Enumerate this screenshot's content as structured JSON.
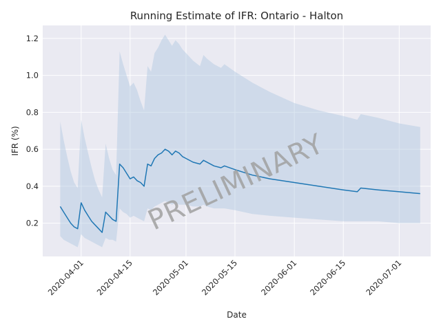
{
  "chart_data": {
    "type": "line",
    "title": "Running Estimate of IFR: Ontario - Halton",
    "xlabel": "Date",
    "ylabel": "IFR (%)",
    "watermark": "PRELIMINARY",
    "xlim": [
      "2020-03-21",
      "2020-07-10"
    ],
    "ylim": [
      0.02,
      1.27
    ],
    "grid": true,
    "x_ticks": [
      "2020-04-01",
      "2020-04-15",
      "2020-05-01",
      "2020-05-15",
      "2020-06-01",
      "2020-06-15",
      "2020-07-01"
    ],
    "y_ticks": [
      0.2,
      0.4,
      0.6,
      0.8,
      1.0,
      1.2
    ],
    "y_tick_labels": [
      "0.2",
      "0.4",
      "0.6",
      "0.8",
      "1.0",
      "1.2"
    ],
    "series": [
      {
        "color": "#1f77b4",
        "band_color": "#b0c8e0",
        "x": [
          "2020-03-26",
          "2020-03-27",
          "2020-03-28",
          "2020-03-29",
          "2020-03-30",
          "2020-03-31",
          "2020-04-01",
          "2020-04-02",
          "2020-04-03",
          "2020-04-04",
          "2020-04-05",
          "2020-04-06",
          "2020-04-07",
          "2020-04-08",
          "2020-04-09",
          "2020-04-10",
          "2020-04-11",
          "2020-04-12",
          "2020-04-13",
          "2020-04-14",
          "2020-04-15",
          "2020-04-16",
          "2020-04-17",
          "2020-04-18",
          "2020-04-19",
          "2020-04-20",
          "2020-04-21",
          "2020-04-22",
          "2020-04-23",
          "2020-04-24",
          "2020-04-25",
          "2020-04-26",
          "2020-04-27",
          "2020-04-28",
          "2020-04-29",
          "2020-04-30",
          "2020-05-01",
          "2020-05-03",
          "2020-05-05",
          "2020-05-06",
          "2020-05-07",
          "2020-05-09",
          "2020-05-11",
          "2020-05-12",
          "2020-05-15",
          "2020-05-20",
          "2020-05-25",
          "2020-06-01",
          "2020-06-08",
          "2020-06-15",
          "2020-06-19",
          "2020-06-20",
          "2020-06-25",
          "2020-07-01",
          "2020-07-07"
        ],
        "y": [
          0.29,
          0.26,
          0.23,
          0.2,
          0.18,
          0.17,
          0.31,
          0.27,
          0.24,
          0.21,
          0.19,
          0.17,
          0.15,
          0.26,
          0.24,
          0.22,
          0.21,
          0.52,
          0.5,
          0.47,
          0.44,
          0.45,
          0.43,
          0.42,
          0.4,
          0.52,
          0.51,
          0.55,
          0.57,
          0.58,
          0.6,
          0.59,
          0.57,
          0.59,
          0.58,
          0.56,
          0.55,
          0.53,
          0.52,
          0.54,
          0.53,
          0.51,
          0.5,
          0.51,
          0.49,
          0.46,
          0.44,
          0.42,
          0.4,
          0.38,
          0.37,
          0.39,
          0.38,
          0.37,
          0.36
        ],
        "y_lower": [
          0.13,
          0.11,
          0.1,
          0.09,
          0.08,
          0.07,
          0.14,
          0.12,
          0.11,
          0.1,
          0.09,
          0.08,
          0.07,
          0.12,
          0.11,
          0.11,
          0.1,
          0.28,
          0.26,
          0.25,
          0.23,
          0.24,
          0.23,
          0.22,
          0.21,
          0.28,
          0.27,
          0.29,
          0.3,
          0.31,
          0.32,
          0.31,
          0.3,
          0.31,
          0.3,
          0.3,
          0.3,
          0.29,
          0.29,
          0.3,
          0.29,
          0.28,
          0.28,
          0.28,
          0.27,
          0.25,
          0.24,
          0.23,
          0.22,
          0.21,
          0.21,
          0.21,
          0.21,
          0.2,
          0.2
        ],
        "y_upper": [
          0.75,
          0.65,
          0.56,
          0.48,
          0.42,
          0.39,
          0.76,
          0.66,
          0.58,
          0.5,
          0.43,
          0.38,
          0.34,
          0.63,
          0.55,
          0.49,
          0.46,
          1.13,
          1.06,
          1.0,
          0.94,
          0.96,
          0.92,
          0.86,
          0.81,
          1.05,
          1.02,
          1.12,
          1.15,
          1.19,
          1.22,
          1.19,
          1.16,
          1.19,
          1.17,
          1.14,
          1.12,
          1.08,
          1.05,
          1.11,
          1.09,
          1.06,
          1.04,
          1.06,
          1.02,
          0.96,
          0.91,
          0.85,
          0.81,
          0.78,
          0.76,
          0.79,
          0.77,
          0.74,
          0.72
        ]
      }
    ]
  }
}
